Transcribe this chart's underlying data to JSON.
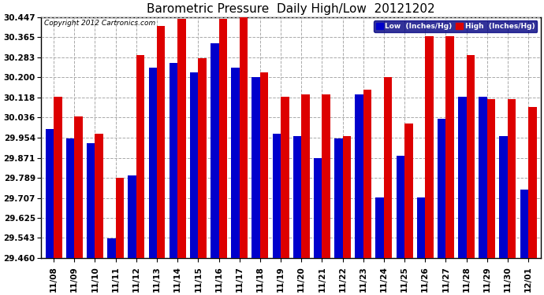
{
  "title": "Barometric Pressure  Daily High/Low  20121202",
  "copyright": "Copyright 2012 Cartronics.com",
  "dates": [
    "11/08",
    "11/09",
    "11/10",
    "11/11",
    "11/12",
    "11/13",
    "11/14",
    "11/15",
    "11/16",
    "11/17",
    "11/18",
    "11/19",
    "11/20",
    "11/21",
    "11/22",
    "11/23",
    "11/24",
    "11/25",
    "11/26",
    "11/27",
    "11/28",
    "11/29",
    "11/30",
    "12/01"
  ],
  "low_values": [
    29.99,
    29.95,
    29.93,
    29.54,
    29.8,
    30.24,
    30.26,
    30.22,
    30.34,
    30.24,
    30.2,
    29.97,
    29.96,
    29.87,
    29.95,
    30.13,
    29.71,
    29.88,
    29.71,
    30.03,
    30.12,
    30.12,
    29.96,
    29.74
  ],
  "high_values": [
    30.12,
    30.04,
    29.97,
    29.79,
    30.29,
    30.41,
    30.44,
    30.28,
    30.44,
    30.45,
    30.22,
    30.12,
    30.13,
    30.13,
    29.96,
    30.15,
    30.2,
    30.01,
    30.37,
    30.37,
    30.29,
    30.11,
    30.11,
    30.08
  ],
  "ymin": 29.46,
  "ymax": 30.447,
  "yticks": [
    29.46,
    29.543,
    29.625,
    29.707,
    29.789,
    29.871,
    29.954,
    30.036,
    30.118,
    30.2,
    30.283,
    30.365,
    30.447
  ],
  "low_color": "#0000cc",
  "high_color": "#dd0000",
  "bg_color": "#ffffff",
  "grid_color": "#aaaaaa",
  "bar_width": 0.4,
  "title_fontsize": 11,
  "tick_fontsize": 7.5,
  "legend_low_label": "Low  (Inches/Hg)",
  "legend_high_label": "High  (Inches/Hg)"
}
